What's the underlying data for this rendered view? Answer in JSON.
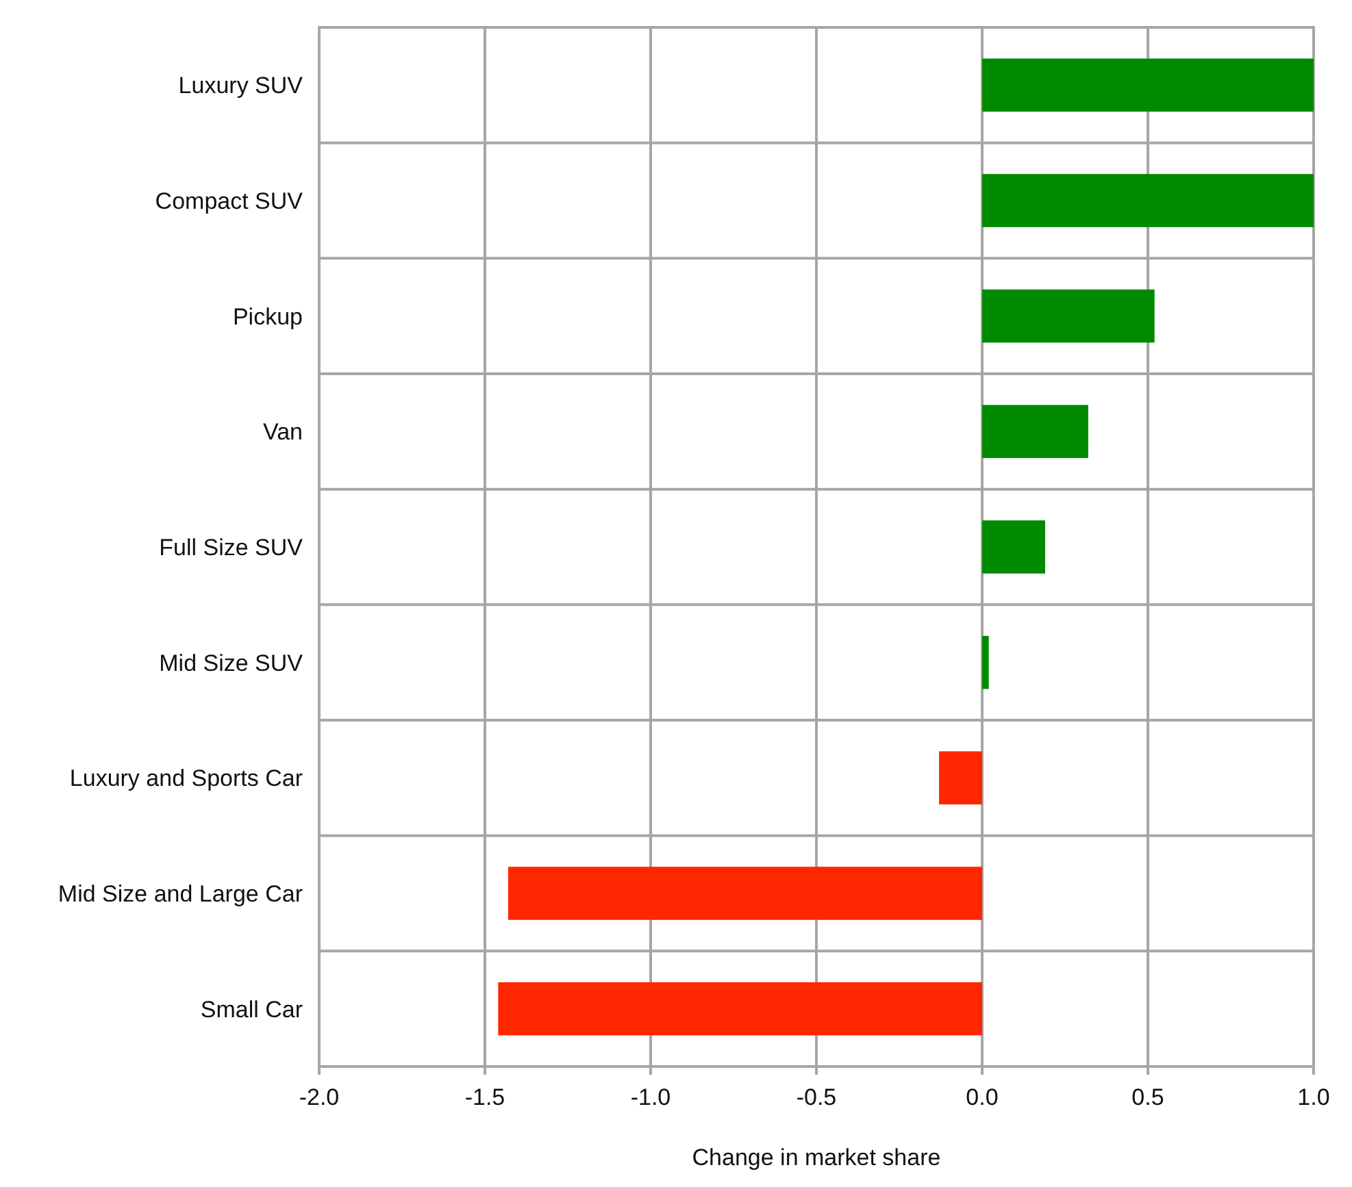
{
  "chart_data": {
    "type": "bar",
    "orientation": "horizontal",
    "xlabel": "Change in market share",
    "categories": [
      "Luxury SUV",
      "Compact SUV",
      "Pickup",
      "Van",
      "Full Size SUV",
      "Mid Size SUV",
      "Luxury and Sports Car",
      "Mid Size and Large Car",
      "Small Car"
    ],
    "values": [
      1.0,
      1.0,
      0.52,
      0.32,
      0.19,
      0.02,
      -0.13,
      -1.43,
      -1.46
    ],
    "colors": [
      "#008a00",
      "#008a00",
      "#008a00",
      "#008a00",
      "#008a00",
      "#008a00",
      "#ff2600",
      "#ff2600",
      "#ff2600"
    ],
    "xlim": [
      -2,
      1
    ],
    "xticks": [
      {
        "value": -2,
        "label": "-2.0"
      },
      {
        "value": -1.5,
        "label": "-1.5"
      },
      {
        "value": -1,
        "label": "-1.0"
      },
      {
        "value": -0.5,
        "label": "-0.5"
      },
      {
        "value": 0,
        "label": "0.0"
      },
      {
        "value": 0.5,
        "label": "0.5"
      },
      {
        "value": 1,
        "label": "1.0"
      }
    ],
    "grid": true
  }
}
